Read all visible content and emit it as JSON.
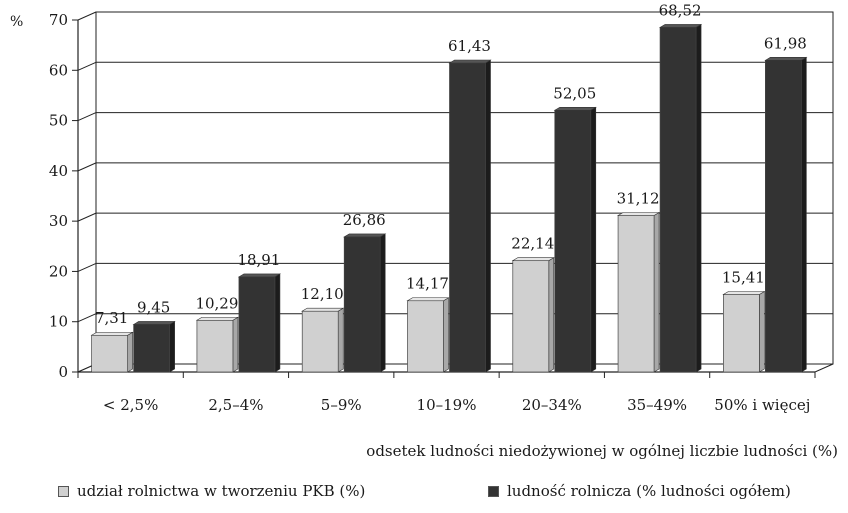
{
  "chart_data": {
    "type": "bar",
    "title": "",
    "ylabel": "%",
    "xlabel": "odsetek ludności niedożywionej w ogólnej liczbie ludności (%)",
    "ylim": [
      0,
      70
    ],
    "yticks": [
      0,
      10,
      20,
      30,
      40,
      50,
      60,
      70
    ],
    "grid": true,
    "legend_position": "bottom",
    "categories": [
      "< 2,5%",
      "2,5–4%",
      "5–9%",
      "10–19%",
      "20–34%",
      "35–49%",
      "50% i więcej"
    ],
    "series": [
      {
        "name": "udział rolnictwa w tworzeniu PKB (%)",
        "color": "#d0d0d0",
        "values": [
          7.31,
          10.29,
          12.1,
          14.17,
          22.14,
          31.12,
          15.41
        ],
        "labels": [
          "7,31",
          "10,29",
          "12,10",
          "14,17",
          "22,14",
          "31,12",
          "15,41"
        ]
      },
      {
        "name": "ludność rolnicza  (% ludności ogółem)",
        "color": "#333333",
        "values": [
          9.45,
          18.91,
          26.86,
          61.43,
          52.05,
          68.52,
          61.98
        ],
        "labels": [
          "9,45",
          "18,91",
          "26,86",
          "61,43",
          "52,05",
          "68,52",
          "61,98"
        ]
      }
    ]
  }
}
